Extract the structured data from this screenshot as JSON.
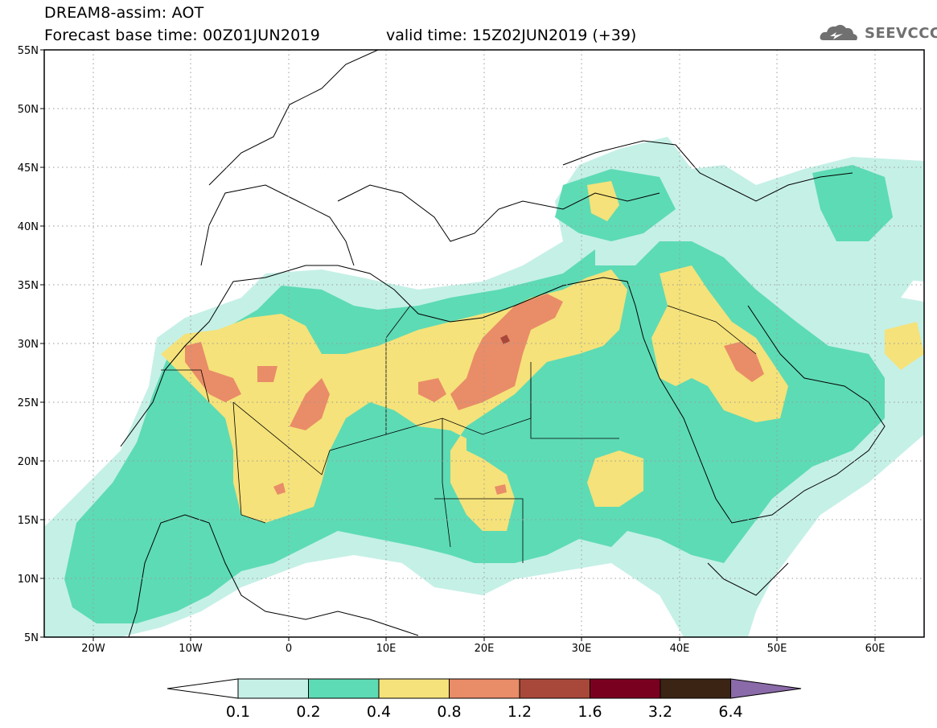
{
  "header": {
    "title": "DREAM8-assim: AOT",
    "base_time": "Forecast base time: 00Z01JUN2019",
    "valid_time": "valid time: 15Z02JUN2019 (+39)",
    "logo_text": "SEEVCCC"
  },
  "map": {
    "region": "North Africa / Middle East",
    "lat_labels": [
      "55N",
      "50N",
      "45N",
      "40N",
      "35N",
      "30N",
      "25N",
      "20N",
      "15N",
      "10N",
      "5N"
    ],
    "lon_labels": [
      "20W",
      "10W",
      "0",
      "10E",
      "20E",
      "30E",
      "40E",
      "50E",
      "60E"
    ],
    "lon_range": [
      -25,
      65
    ],
    "lat_range": [
      5,
      55
    ],
    "gridlines": "dotted"
  },
  "colorbar": {
    "labels": [
      "0.1",
      "0.2",
      "0.4",
      "0.8",
      "1.2",
      "1.6",
      "3.2",
      "6.4"
    ],
    "colors": [
      "#ffffff",
      "#c5f0e6",
      "#5ddbb4",
      "#f5e27a",
      "#e98c68",
      "#a8483a",
      "#7a0020",
      "#3b2414",
      "#8a6aa8"
    ]
  },
  "palette": {
    "level1": "#c5f0e6",
    "level2": "#5ddbb4",
    "level3": "#f5e27a",
    "level4": "#e98c68",
    "level5": "#a8483a"
  }
}
